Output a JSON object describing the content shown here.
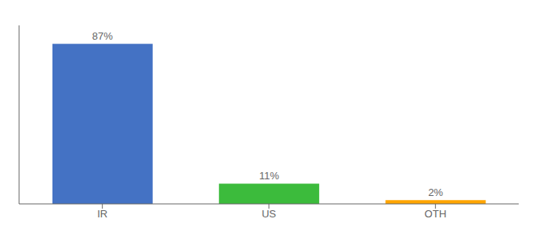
{
  "chart_data": {
    "type": "bar",
    "categories": [
      "IR",
      "US",
      "OTH"
    ],
    "values": [
      87,
      11,
      2
    ],
    "value_labels": [
      "87%",
      "11%",
      "2%"
    ],
    "colors": [
      "#4472C4",
      "#3CBB3C",
      "#FFA500"
    ],
    "ylim": [
      0,
      97
    ],
    "data_labels": true,
    "tick_labels": "x",
    "grid": false
  }
}
